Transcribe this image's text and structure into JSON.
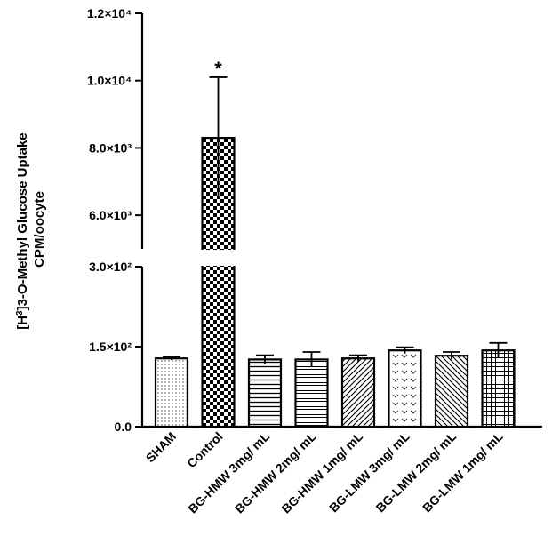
{
  "chart_data": {
    "type": "bar",
    "ylabel": [
      "[H3]3-O-Methyl Glucose Uptake",
      "CPM/oocyte"
    ],
    "axis_break": {
      "lower_range": [
        0,
        300
      ],
      "upper_range": [
        5000,
        12000
      ]
    },
    "lower_ticks": [
      {
        "value": 0,
        "label": "0.0"
      },
      {
        "value": 150,
        "label": "1.5×10²"
      },
      {
        "value": 300,
        "label": "3.0×10²"
      }
    ],
    "upper_ticks": [
      {
        "value": 6000,
        "label": "6.0×10³"
      },
      {
        "value": 8000,
        "label": "8.0×10³"
      },
      {
        "value": 10000,
        "label": "1.0×10⁴"
      },
      {
        "value": 12000,
        "label": "1.2×10⁴"
      }
    ],
    "categories": [
      "SHAM",
      "Control",
      "BG-HMW 3mg/ mL",
      "BG-HMW 2mg/ mL",
      "BG-HMW 1mg/ mL",
      "BG-LMW 3mg/ mL",
      "BG-LMW 2mg/ mL",
      "BG-LMW 1mg/ mL"
    ],
    "values": [
      128,
      8300,
      126,
      126,
      128,
      143,
      133,
      143
    ],
    "errors": [
      3,
      1800,
      8,
      14,
      6,
      6,
      7,
      14
    ],
    "annotations": [
      {
        "category": "Control",
        "text": "*"
      }
    ],
    "patterns": [
      "dots",
      "checker",
      "hlines",
      "hlines-dense",
      "diag-right",
      "chevron",
      "diag-left",
      "grid"
    ]
  }
}
